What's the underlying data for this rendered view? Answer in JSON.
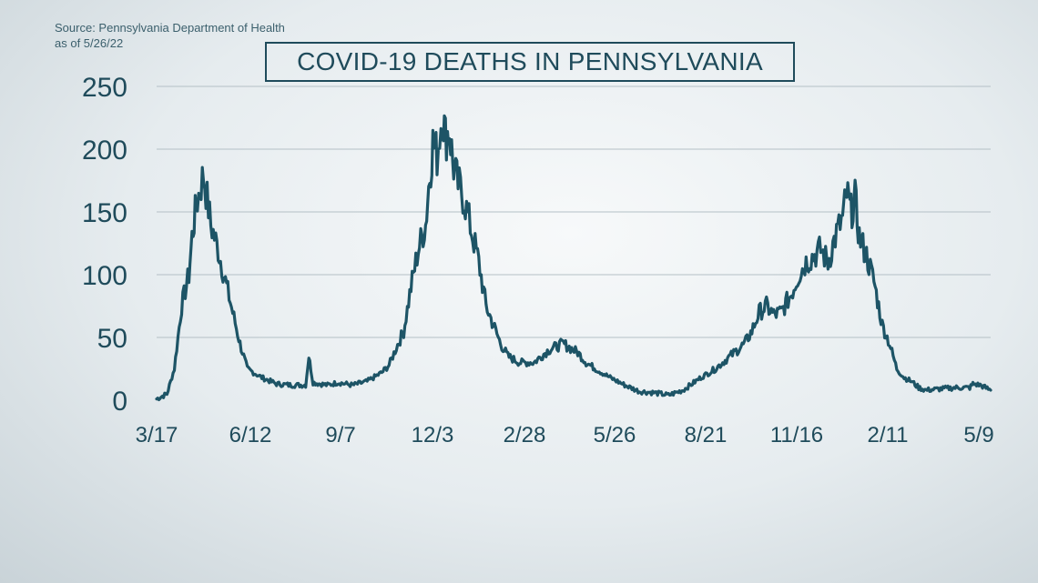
{
  "header": {
    "source_line1": "Source: Pennsylvania Department of Health",
    "source_line2": "as of 5/26/22"
  },
  "colors": {
    "line": "#1d5466",
    "grid": "#b4c0c6",
    "text": "#1f4b5b"
  },
  "chart_data": {
    "type": "line",
    "title": "COVID-19 DEATHS IN PENNSYLVANIA",
    "xlabel": "",
    "ylabel": "",
    "ylim": [
      0,
      250
    ],
    "yticks": [
      0,
      50,
      100,
      150,
      200,
      250
    ],
    "xticks": [
      "3/17",
      "6/12",
      "9/7",
      "12/3",
      "2/28",
      "5/26",
      "8/21",
      "11/16",
      "2/11",
      "5/9"
    ],
    "grid": true,
    "series": [
      {
        "x": [
          "2020-03-17",
          "2020-03-27",
          "2020-04-03",
          "2020-04-10",
          "2020-04-17",
          "2020-04-20",
          "2020-04-24",
          "2020-05-01",
          "2020-05-08",
          "2020-05-15",
          "2020-05-22",
          "2020-05-29",
          "2020-06-05",
          "2020-06-12",
          "2020-06-26",
          "2020-07-10",
          "2020-07-24",
          "2020-08-07",
          "2020-08-10",
          "2020-08-14",
          "2020-08-28",
          "2020-09-07",
          "2020-09-21",
          "2020-10-05",
          "2020-10-19",
          "2020-10-26",
          "2020-11-02",
          "2020-11-09",
          "2020-11-16",
          "2020-11-23",
          "2020-11-30",
          "2020-12-03",
          "2020-12-07",
          "2020-12-11",
          "2020-12-16",
          "2020-12-19",
          "2020-12-23",
          "2020-12-26",
          "2020-12-30",
          "2021-01-06",
          "2021-01-13",
          "2021-01-20",
          "2021-01-27",
          "2021-02-03",
          "2021-02-10",
          "2021-02-17",
          "2021-02-28",
          "2021-03-14",
          "2021-03-28",
          "2021-04-11",
          "2021-04-25",
          "2021-05-03",
          "2021-05-12",
          "2021-05-26",
          "2021-06-09",
          "2021-06-23",
          "2021-07-07",
          "2021-07-21",
          "2021-08-04",
          "2021-08-21",
          "2021-09-04",
          "2021-09-18",
          "2021-10-02",
          "2021-10-09",
          "2021-10-16",
          "2021-10-23",
          "2021-10-30",
          "2021-11-06",
          "2021-11-16",
          "2021-11-23",
          "2021-11-30",
          "2021-12-07",
          "2021-12-14",
          "2021-12-21",
          "2021-12-28",
          "2022-01-04",
          "2022-01-08",
          "2022-01-12",
          "2022-01-16",
          "2022-01-20",
          "2022-01-27",
          "2022-02-03",
          "2022-02-11",
          "2022-02-18",
          "2022-02-25",
          "2022-03-04",
          "2022-03-11",
          "2022-03-18",
          "2022-03-25",
          "2022-04-08",
          "2022-04-22",
          "2022-05-06",
          "2022-05-09",
          "2022-05-16",
          "2022-05-26"
        ],
        "y": [
          1,
          5,
          25,
          75,
          100,
          130,
          155,
          180,
          140,
          120,
          95,
          70,
          45,
          25,
          18,
          13,
          12,
          12,
          35,
          14,
          12,
          14,
          12,
          15,
          22,
          28,
          42,
          55,
          90,
          120,
          140,
          170,
          205,
          195,
          230,
          210,
          215,
          190,
          175,
          160,
          135,
          110,
          75,
          60,
          45,
          35,
          30,
          30,
          40,
          45,
          38,
          30,
          25,
          18,
          12,
          7,
          6,
          4,
          8,
          18,
          25,
          35,
          45,
          55,
          70,
          75,
          68,
          70,
          85,
          100,
          110,
          115,
          120,
          110,
          130,
          145,
          165,
          150,
          160,
          130,
          115,
          95,
          60,
          45,
          25,
          18,
          15,
          10,
          8,
          9,
          10,
          10,
          13,
          12,
          8
        ]
      }
    ]
  }
}
